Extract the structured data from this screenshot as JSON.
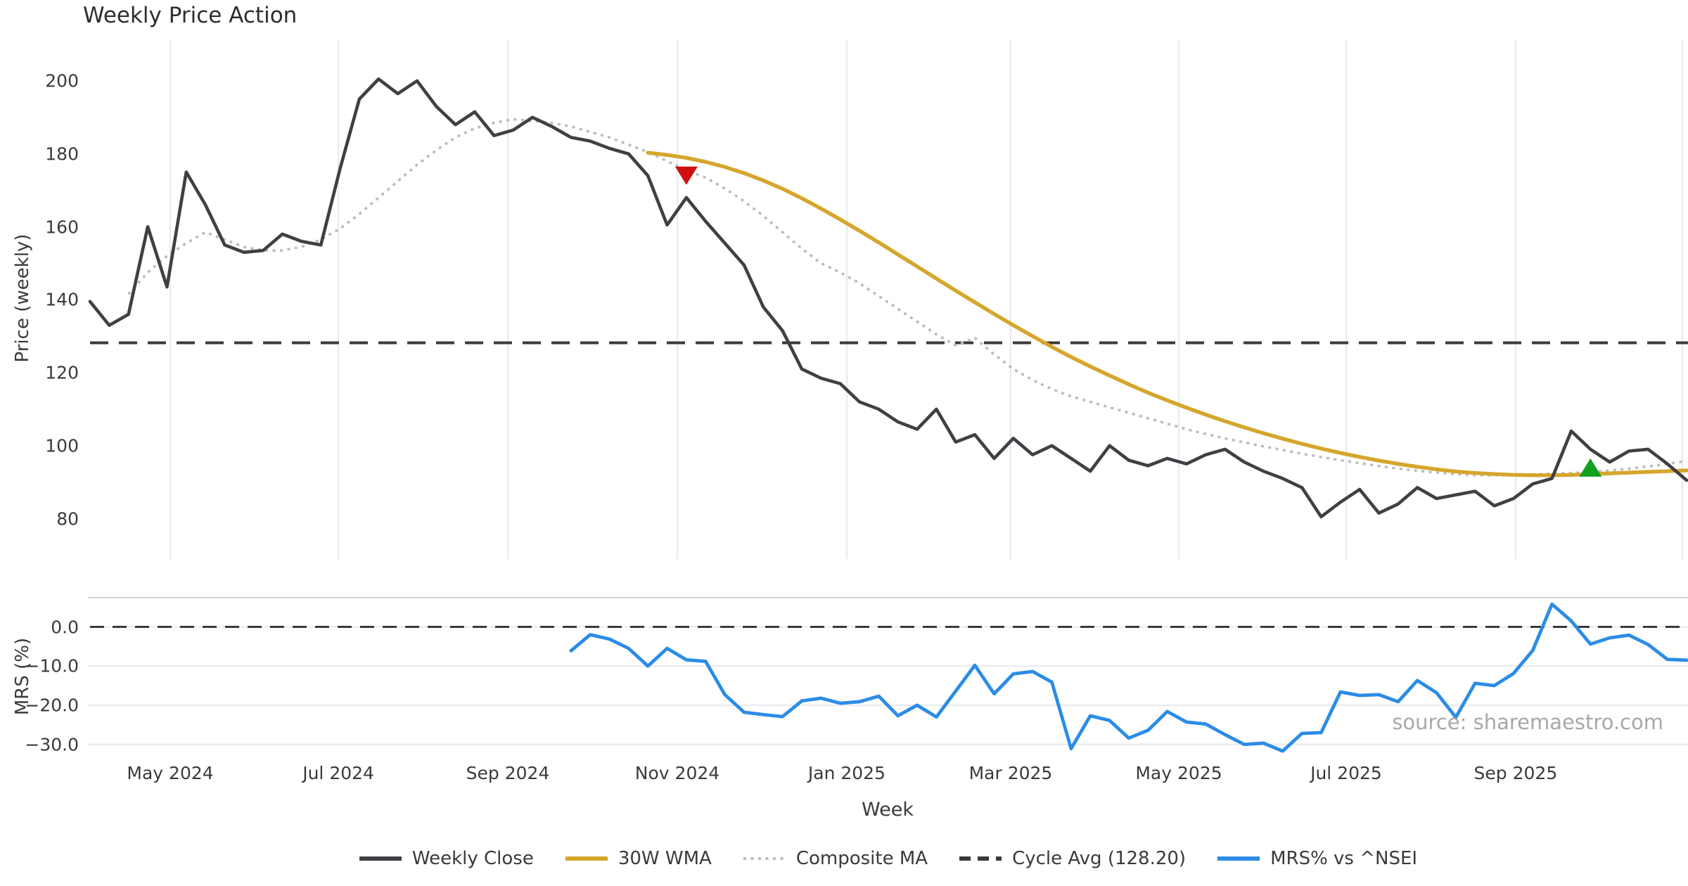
{
  "title": "Weekly Price Action",
  "source_text": "source: sharemaestro.com",
  "x_axis": {
    "label": "Week"
  },
  "price_panel": {
    "ylabel": "Price (weekly)"
  },
  "mrs_panel": {
    "ylabel": "MRS (%)"
  },
  "cycle_avg_value": 128.2,
  "colors": {
    "weekly_close": "#3f3f44",
    "wma_30w": "#d5a62c",
    "composite_ma": "#bcbcbc",
    "cycle_avg": "#3a3a3a",
    "mrs_line": "#2b8ce6",
    "marker_sell": "#cf1010",
    "marker_buy": "#12a01e",
    "grid": "#e8e9f0",
    "panel_border": "#d2d2d8",
    "background": "#ffffff"
  },
  "legend": {
    "items": [
      {
        "label": "Weekly Close",
        "pattern": "solid",
        "color": "#3f3f44"
      },
      {
        "label": "30W WMA",
        "pattern": "solid",
        "color": "#d5a62c"
      },
      {
        "label": "Composite MA",
        "pattern": "dotted",
        "color": "#bcbcbc"
      },
      {
        "label": "Cycle Avg (128.20)",
        "pattern": "dashed",
        "color": "#3a3a3a"
      },
      {
        "label": "MRS% vs ^NSEI",
        "pattern": "solid",
        "color": "#2b8ce6"
      }
    ]
  },
  "chart_data": [
    {
      "type": "line",
      "panel": "price",
      "title": "Weekly Price Action",
      "xlabel": "Week",
      "ylabel": "Price (weekly)",
      "ylim": [
        69,
        211
      ],
      "yticks": [
        200,
        180,
        160,
        140,
        120,
        100,
        80
      ],
      "x_unit": "week_index",
      "xticks": [
        {
          "label": "May 2024",
          "i": 4.17
        },
        {
          "label": "Jul 2024",
          "i": 12.91
        },
        {
          "label": "Sep 2024",
          "i": 21.72
        },
        {
          "label": "Nov 2024",
          "i": 30.53
        },
        {
          "label": "Jan 2025",
          "i": 39.34
        },
        {
          "label": "Mar 2025",
          "i": 47.86
        },
        {
          "label": "May 2025",
          "i": 56.6
        },
        {
          "label": "Jul 2025",
          "i": 65.3
        },
        {
          "label": "Sep 2025",
          "i": 74.11
        },
        {
          "label": "",
          "i": 82.78
        }
      ],
      "series": [
        {
          "name": "Weekly Close",
          "start_week": 0,
          "values": [
            139.5,
            133,
            136,
            160,
            143.5,
            175,
            166,
            155,
            153,
            153.5,
            158,
            156,
            155,
            176,
            195,
            200.5,
            196.5,
            200,
            193,
            188,
            191.5,
            185,
            186.5,
            190,
            187.5,
            184.5,
            183.5,
            181.5,
            180,
            174,
            160.5,
            168,
            161.5,
            155.5,
            149.5,
            138,
            131.5,
            121,
            118.5,
            117,
            112,
            110,
            106.5,
            104.5,
            110,
            101,
            103,
            96.5,
            102,
            97.5,
            100,
            96.5,
            93,
            100,
            96,
            94.5,
            96.5,
            95,
            97.5,
            99,
            95.5,
            93,
            91,
            88.5,
            80.5,
            84.5,
            88,
            81.5,
            84,
            88.5,
            85.5,
            86.5,
            87.5,
            83.5,
            85.5,
            89.5,
            91,
            104,
            99,
            95.5,
            98.5,
            99,
            95,
            90.5
          ]
        },
        {
          "name": "30W WMA",
          "start_week": 29,
          "values": [
            180.3,
            179.7,
            178.9,
            177.8,
            176.4,
            174.7,
            172.7,
            170.4,
            167.8,
            165.0,
            162.0,
            158.9,
            155.7,
            152.4,
            149.1,
            145.8,
            142.5,
            139.3,
            136.1,
            133.0,
            130.0,
            127.1,
            124.3,
            121.7,
            119.2,
            116.8,
            114.5,
            112.4,
            110.4,
            108.5,
            106.7,
            105.0,
            103.4,
            101.9,
            100.5,
            99.2,
            98.0,
            96.9,
            95.9,
            95.0,
            94.2,
            93.5,
            92.9,
            92.5,
            92.2,
            92.0,
            91.9,
            91.9,
            92.0,
            92.2,
            92.4,
            92.6,
            92.8,
            93.0,
            93.2
          ]
        },
        {
          "name": "Composite MA",
          "start_week": 2,
          "values": [
            141.5,
            147.5,
            152,
            155.5,
            158.5,
            156.5,
            154.5,
            153.5,
            153.5,
            154.5,
            156.5,
            159.5,
            163.5,
            168,
            172.5,
            177,
            181,
            184.5,
            187,
            188.5,
            189.5,
            189,
            188.5,
            187.5,
            186,
            184.5,
            182.5,
            180.5,
            178,
            175.5,
            173.5,
            170.5,
            167,
            163,
            158.5,
            154,
            150,
            147.5,
            144.5,
            141,
            137.5,
            134,
            130.5,
            127.5,
            129.5,
            125,
            121,
            118,
            115.5,
            113.5,
            112,
            110.5,
            109,
            107.5,
            106,
            104.5,
            103.2,
            102,
            100.9,
            99.8,
            98.8,
            97.8,
            96.9,
            96,
            95.2,
            94.4,
            93.7,
            93.1,
            92.6,
            92.2,
            91.9,
            91.9,
            92.0,
            92.1,
            92.3,
            92.5,
            92.8,
            93.2,
            93.7,
            94.3,
            95.0,
            95.8
          ]
        },
        {
          "name": "Cycle Avg",
          "type": "hline",
          "value": 128.2
        }
      ],
      "markers": [
        {
          "shape": "triangle-down",
          "meaning": "bearish-cross",
          "week": 31,
          "value": 174,
          "color": "#cf1010"
        },
        {
          "shape": "triangle-up",
          "meaning": "bullish-cross",
          "week": 78,
          "value": 94,
          "color": "#12a01e"
        }
      ],
      "legend_position": "bottom",
      "grid": "vertical-only"
    },
    {
      "type": "line",
      "panel": "mrs",
      "ylabel": "MRS (%)",
      "ylim": [
        -33,
        7.5
      ],
      "yticks": [
        {
          "label": "0.0",
          "v": 0
        },
        {
          "label": "−10.0",
          "v": -10
        },
        {
          "label": "−20.0",
          "v": -20
        },
        {
          "label": "−30.0",
          "v": -30
        }
      ],
      "zero_line": 0,
      "series": [
        {
          "name": "MRS% vs ^NSEI",
          "start_week": 25,
          "values": [
            -6.1,
            -2.0,
            -3.1,
            -5.5,
            -10.0,
            -5.5,
            -8.4,
            -8.8,
            -17.3,
            -21.8,
            -22.4,
            -22.9,
            -18.9,
            -18.2,
            -19.5,
            -19.1,
            -17.7,
            -22.7,
            -20.0,
            -23.0,
            -16.4,
            -9.8,
            -17.1,
            -12.0,
            -11.4,
            -14.1,
            -31.1,
            -22.7,
            -23.9,
            -28.4,
            -26.4,
            -21.6,
            -24.3,
            -24.8,
            -27.5,
            -30.0,
            -29.7,
            -31.7,
            -27.2,
            -27.0,
            -16.6,
            -17.5,
            -17.3,
            -19.1,
            -13.7,
            -16.8,
            -23.1,
            -14.4,
            -15.0,
            -11.9,
            -6.0,
            5.8,
            1.5,
            -4.4,
            -2.8,
            -2.1,
            -4.5,
            -8.3,
            -8.5
          ]
        }
      ],
      "grid": "horizontal-only"
    }
  ]
}
